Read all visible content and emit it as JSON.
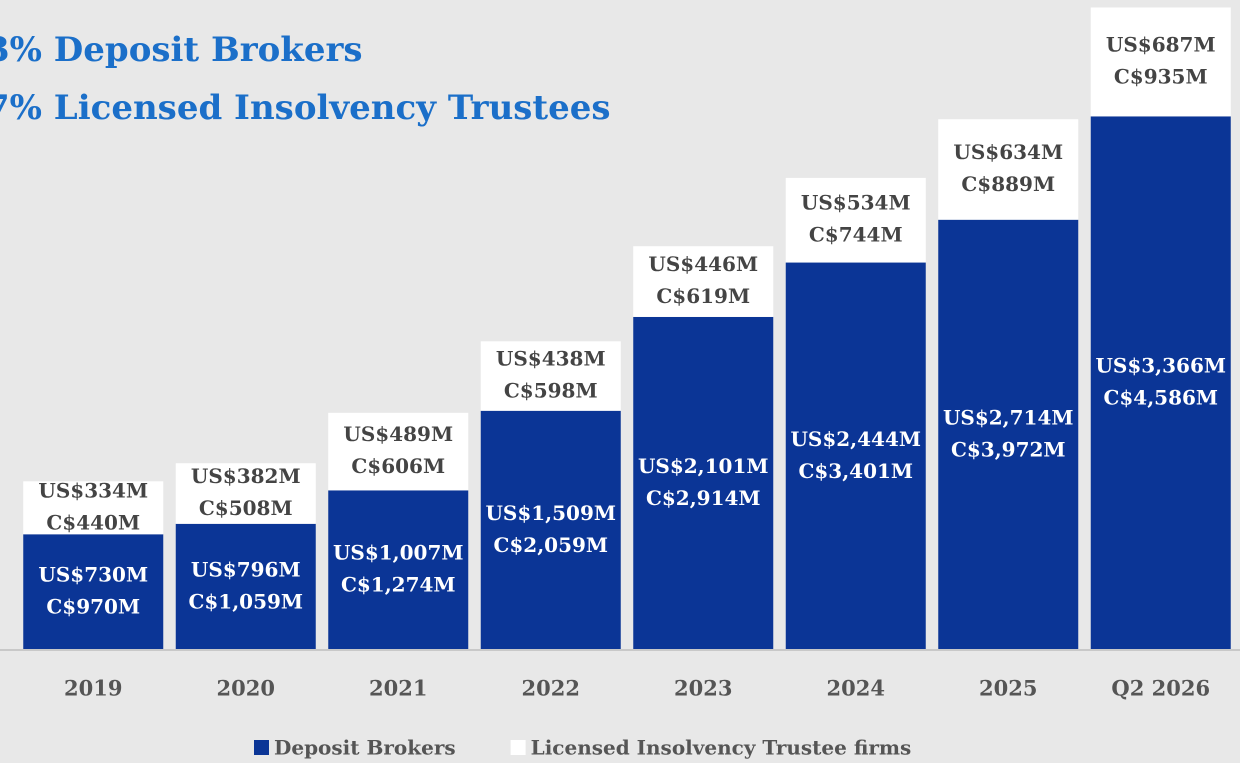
{
  "chart_data": {
    "type": "stacked_bar",
    "title_lines": [
      "3% Deposit Brokers",
      "7% Licensed Insolvency Trustees"
    ],
    "categories": [
      "2019",
      "2020",
      "2021",
      "2022",
      "2023",
      "2024",
      "2025",
      "Q2 2026"
    ],
    "series": [
      {
        "name": "Deposit Brokers",
        "color": "#0b3596",
        "label_color": "#ffffff",
        "values": [
          730,
          796,
          1007,
          1509,
          2101,
          2444,
          2714,
          3366
        ],
        "value_labels": [
          "US$730M",
          "US$796M",
          "US$1,007M",
          "US$1,509M",
          "US$2,101M",
          "US$2,444M",
          "US$2,714M",
          "US$3,366M"
        ],
        "value_labels_cad": [
          "C$970M",
          "C$1,059M",
          "C$1,274M",
          "C$2,059M",
          "C$2,914M",
          "C$3,401M",
          "C$3,972M",
          "C$4,586M"
        ]
      },
      {
        "name": "Licensed Insolvency Trustee firms",
        "color": "#ffffff",
        "label_color": "#444444",
        "values": [
          334,
          382,
          489,
          438,
          446,
          534,
          634,
          687
        ],
        "value_labels": [
          "US$334M",
          "US$382M",
          "US$489M",
          "US$438M",
          "US$446M",
          "US$534M",
          "US$634M",
          "US$687M"
        ],
        "value_labels_cad": [
          "C$440M",
          "C$508M",
          "C$606M",
          "C$598M",
          "C$619M",
          "C$744M",
          "C$889M",
          "C$935M"
        ]
      }
    ],
    "ylim": [
      0,
      4100
    ]
  }
}
